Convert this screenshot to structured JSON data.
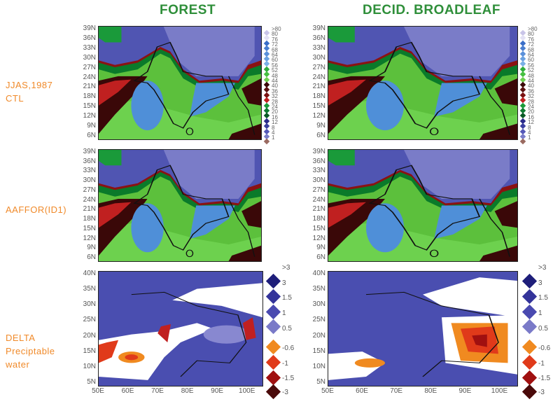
{
  "column_titles": [
    "FOREST",
    "DECID. BROADLEAF"
  ],
  "row_labels": {
    "row1": [
      "JJAS,1987",
      "CTL"
    ],
    "row2": [
      "AAFFOR(ID1)"
    ],
    "row3": [
      "DELTA",
      "Preciptable",
      "water"
    ]
  },
  "top_lat_ticks": [
    "39N",
    "36N",
    "33N",
    "30N",
    "27N",
    "24N",
    "21N",
    "18N",
    "15N",
    "12N",
    "9N",
    "6N"
  ],
  "bottom_lat_ticks": [
    "40N",
    "35N",
    "30N",
    "25N",
    "20N",
    "15N",
    "10N",
    "5N"
  ],
  "lon_ticks": [
    "50E",
    "60E",
    "70E",
    "80E",
    "90E",
    "100E"
  ],
  "pw_legend": {
    "labels": [
      ">80",
      "80",
      "76",
      "72",
      "68",
      "64",
      "60",
      "56",
      "52",
      "48",
      "44",
      "40",
      "36",
      "32",
      "28",
      "24",
      "20",
      "16",
      "12",
      "8",
      "4",
      "1"
    ],
    "colors": [
      "#c8c4e8",
      "#e2e0f4",
      "#3a6ec8",
      "#4a7ed0",
      "#5a90da",
      "#6aa0e0",
      "#7ab0e6",
      "#2fae3a",
      "#45c040",
      "#6ed050",
      "#3a0808",
      "#5a1010",
      "#7a1212",
      "#c02020",
      "#1a9a3a",
      "#0e7a30",
      "#0a5a26",
      "#2a2a8a",
      "#3a3ea0",
      "#5558b8",
      "#7a7cc8",
      "#9a6a60"
    ]
  },
  "delta_legend": {
    "labels": [
      ">3",
      "3",
      "1.5",
      "1",
      "0.5",
      "-0.6",
      "-1",
      "-1.5",
      "-3"
    ],
    "colors": [
      "#1e1e7a",
      "#34349a",
      "#4a4ab0",
      "#7a7ac8",
      "#f08a20",
      "#e03a1a",
      "#a01010",
      "#4a0a0a"
    ]
  }
}
